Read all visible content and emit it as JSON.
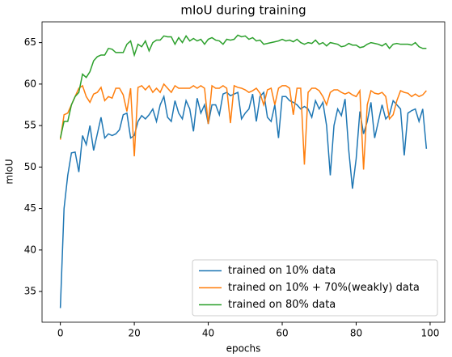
{
  "chart_data": {
    "type": "line",
    "title": "mIoU during training",
    "xlabel": "epochs",
    "ylabel": "mIoU",
    "x": [
      0,
      1,
      2,
      3,
      4,
      5,
      6,
      7,
      8,
      9,
      10,
      11,
      12,
      13,
      14,
      15,
      16,
      17,
      18,
      19,
      20,
      21,
      22,
      23,
      24,
      25,
      26,
      27,
      28,
      29,
      30,
      31,
      32,
      33,
      34,
      35,
      36,
      37,
      38,
      39,
      40,
      41,
      42,
      43,
      44,
      45,
      46,
      47,
      48,
      49,
      50,
      51,
      52,
      53,
      54,
      55,
      56,
      57,
      58,
      59,
      60,
      61,
      62,
      63,
      64,
      65,
      66,
      67,
      68,
      69,
      70,
      71,
      72,
      73,
      74,
      75,
      76,
      77,
      78,
      79,
      80,
      81,
      82,
      83,
      84,
      85,
      86,
      87,
      88,
      89,
      90,
      91,
      92,
      93,
      94,
      95,
      96,
      97,
      98,
      99
    ],
    "series": [
      {
        "name": "trained on 10% data",
        "color": "#1f77b4",
        "values": [
          33,
          45,
          49,
          51.7,
          51.8,
          49.4,
          53.8,
          52.7,
          55,
          52,
          54,
          56,
          53.5,
          54,
          53.8,
          54,
          54.5,
          56.3,
          56.5,
          53.5,
          53.8,
          55.5,
          56.2,
          55.8,
          56.3,
          57,
          55.5,
          57.5,
          58.5,
          56,
          55.5,
          58,
          56.5,
          55.8,
          58,
          57,
          54.3,
          58.3,
          56.5,
          57.5,
          55.2,
          57.5,
          57.5,
          56.3,
          58.8,
          59,
          58.6,
          58.8,
          59,
          55.8,
          56.5,
          57,
          58.8,
          55.5,
          58.5,
          59,
          56,
          55.5,
          57.5,
          53.5,
          58.5,
          58.5,
          58,
          57.8,
          57.5,
          57,
          57.3,
          57,
          56,
          58,
          57,
          57.8,
          55,
          49,
          55,
          57,
          56.2,
          58.2,
          52,
          47.4,
          51,
          56.7,
          54,
          55.5,
          57.8,
          53.5,
          55.5,
          57.5,
          55.8,
          56.3,
          58,
          57.5,
          57,
          51.4,
          56.5,
          56.8,
          57,
          55.5,
          57,
          52.2
        ]
      },
      {
        "name": "trained on 10% + 70%(weakly) data",
        "color": "#ff7f0e",
        "values": [
          53.3,
          56.3,
          56.5,
          57.5,
          58.5,
          59.5,
          59.8,
          58.5,
          57.8,
          58.8,
          59,
          59.6,
          58,
          58.5,
          58.3,
          59.5,
          59.5,
          58.7,
          56.7,
          59.5,
          51.3,
          59.6,
          59.8,
          59.3,
          59.8,
          59,
          59.5,
          59,
          60,
          59.5,
          59,
          59.8,
          59.5,
          59.5,
          59.5,
          59.5,
          59.8,
          59.5,
          59.8,
          59.5,
          55.2,
          59.8,
          59.5,
          59.5,
          59.8,
          59.5,
          55.3,
          59.8,
          59.6,
          59.5,
          59.3,
          59,
          59.2,
          59.5,
          58.9,
          57.5,
          59.3,
          59.5,
          57.5,
          59.5,
          59.8,
          59.8,
          59.5,
          56.3,
          59.5,
          59.5,
          50.3,
          59,
          59.5,
          59.5,
          59.2,
          58.5,
          57.5,
          59,
          59.3,
          59.3,
          59,
          58.8,
          59,
          58.7,
          58.5,
          59.2,
          49.7,
          57.5,
          59.2,
          58.9,
          58.8,
          59,
          58.5,
          55.8,
          56.3,
          58,
          59.2,
          59,
          58.9,
          58.5,
          58.8,
          58.5,
          58.7,
          59.2
        ]
      },
      {
        "name": "trained on 80% data",
        "color": "#2ca02c",
        "values": [
          53.5,
          55.5,
          55.5,
          57.5,
          58.5,
          59,
          61.2,
          60.8,
          61.5,
          62.8,
          63.3,
          63.5,
          63.5,
          64.3,
          64.2,
          63.8,
          63.8,
          63.8,
          64.8,
          65.2,
          63.5,
          64.8,
          64.5,
          65.2,
          64,
          65,
          65.3,
          65.3,
          65.8,
          65.7,
          65.7,
          64.8,
          65.6,
          65,
          65.8,
          65.2,
          65.5,
          65.2,
          65.4,
          64.8,
          65.4,
          65.6,
          65.3,
          65.2,
          64.8,
          65.4,
          65.3,
          65.4,
          65.9,
          65.7,
          65.8,
          65.4,
          65.6,
          65.2,
          65.3,
          64.8,
          64.9,
          65,
          65.1,
          65.2,
          65.4,
          65.2,
          65.3,
          65.1,
          65.4,
          65,
          64.8,
          65,
          64.9,
          65.3,
          64.8,
          65,
          64.6,
          65,
          64.9,
          64.8,
          64.5,
          64.6,
          64.9,
          64.7,
          64.7,
          64.4,
          64.5,
          64.8,
          65,
          64.9,
          64.8,
          64.6,
          64.9,
          64.3,
          64.8,
          64.9,
          64.8,
          64.8,
          64.8,
          64.7,
          65,
          64.5,
          64.3,
          64.3
        ]
      }
    ],
    "xlim": [
      -4.95,
      103.95
    ],
    "xticks": [
      0,
      20,
      40,
      60,
      80,
      100
    ],
    "ylim": [
      31.3,
      67.5
    ],
    "yticks": [
      35,
      40,
      45,
      50,
      55,
      60,
      65
    ],
    "grid": false,
    "legend": "lower right"
  }
}
